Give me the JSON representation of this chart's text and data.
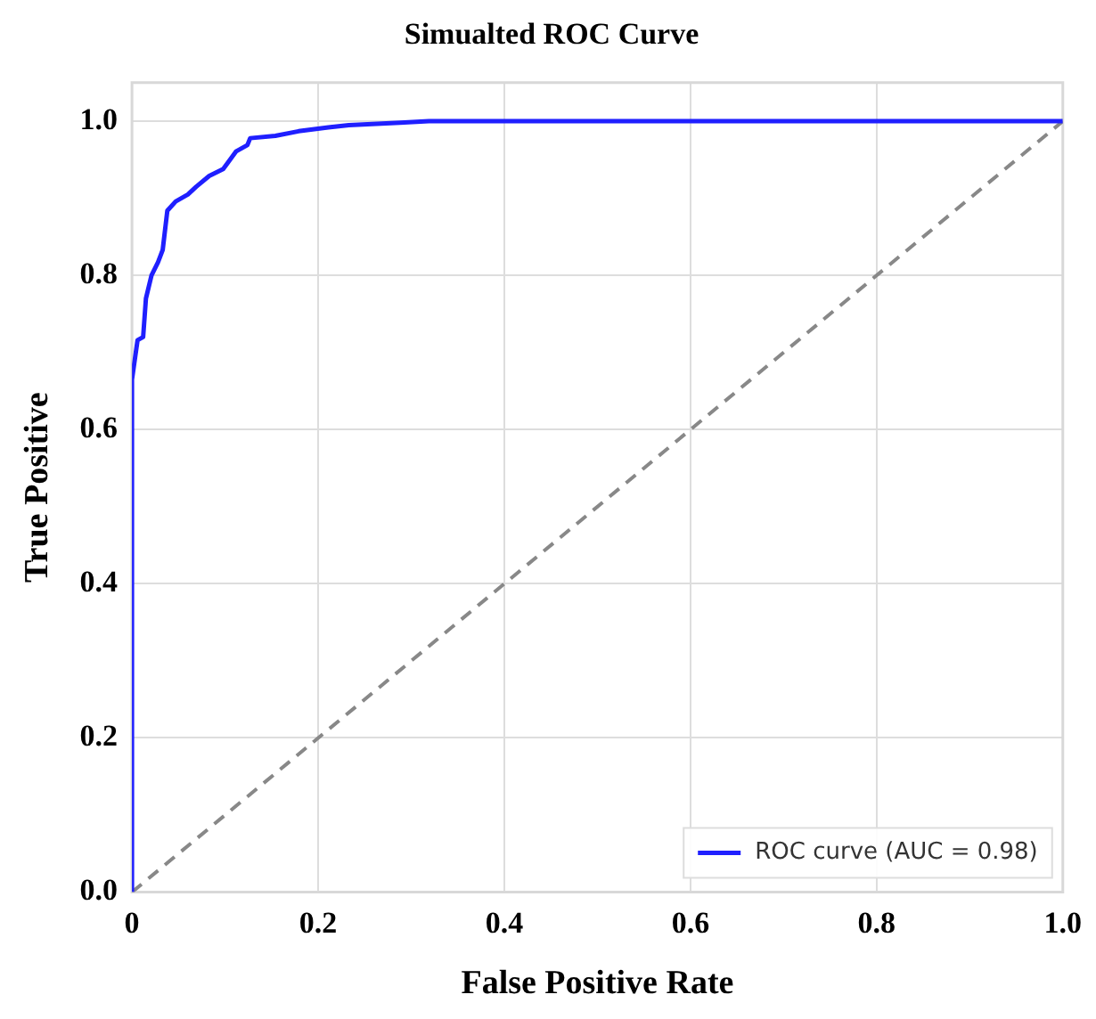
{
  "chart_data": {
    "type": "line",
    "title": "Simualted ROC Curve",
    "xlabel": "False Positive Rate",
    "ylabel": "True Positive",
    "xlim": [
      0,
      1
    ],
    "ylim": [
      0,
      1.05
    ],
    "xticks": [
      0,
      0.2,
      0.4,
      0.6,
      0.8,
      {
        "value": 1,
        "label": "1.0"
      }
    ],
    "yticks": [
      {
        "value": 0,
        "label": "0.0"
      },
      0.2,
      0.4,
      0.6,
      0.8,
      {
        "value": 1,
        "label": "1.0"
      }
    ],
    "grid": true,
    "legend": "bottom right",
    "series": [
      {
        "name": "ROC curve (AUC = 0.98)",
        "color": "#1f1fff",
        "x": [
          0,
          0,
          0.006,
          0.012,
          0.015,
          0.021,
          0.028,
          0.033,
          0.038,
          0.047,
          0.06,
          0.069,
          0.083,
          0.098,
          0.112,
          0.124,
          0.127,
          0.154,
          0.179,
          0.211,
          0.233,
          0.288,
          0.319,
          1
        ],
        "values": [
          0,
          0.665,
          0.716,
          0.72,
          0.77,
          0.8,
          0.817,
          0.833,
          0.884,
          0.896,
          0.905,
          0.915,
          0.929,
          0.938,
          0.961,
          0.969,
          0.978,
          0.981,
          0.987,
          0.992,
          0.995,
          0.998,
          1,
          1
        ]
      },
      {
        "color": "#888888",
        "line_style": "dashed",
        "x": [
          0,
          1
        ],
        "values": [
          0,
          1
        ]
      }
    ]
  }
}
